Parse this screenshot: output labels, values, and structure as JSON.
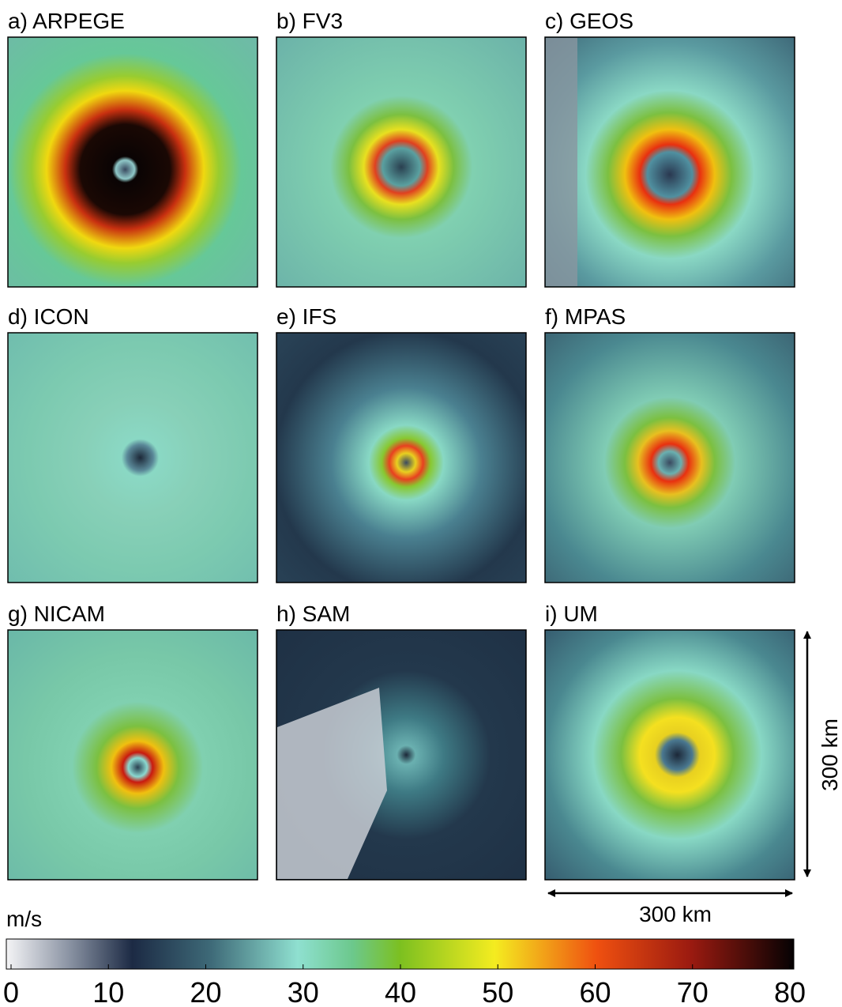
{
  "panels": [
    {
      "label": "a)  ARPEGE"
    },
    {
      "label": "b) FV3"
    },
    {
      "label": "c) GEOS"
    },
    {
      "label": "d) ICON"
    },
    {
      "label": "e) IFS"
    },
    {
      "label": "f) MPAS"
    },
    {
      "label": "g) NICAM"
    },
    {
      "label": "h) SAM"
    },
    {
      "label": "i)   UM"
    }
  ],
  "scale": {
    "x_label": "300 km",
    "y_label": "300 km"
  },
  "colorbar": {
    "unit": "m/s",
    "lim": [
      0,
      80
    ],
    "ticks": [
      0,
      10,
      20,
      30,
      40,
      50,
      60,
      70,
      80
    ]
  }
}
